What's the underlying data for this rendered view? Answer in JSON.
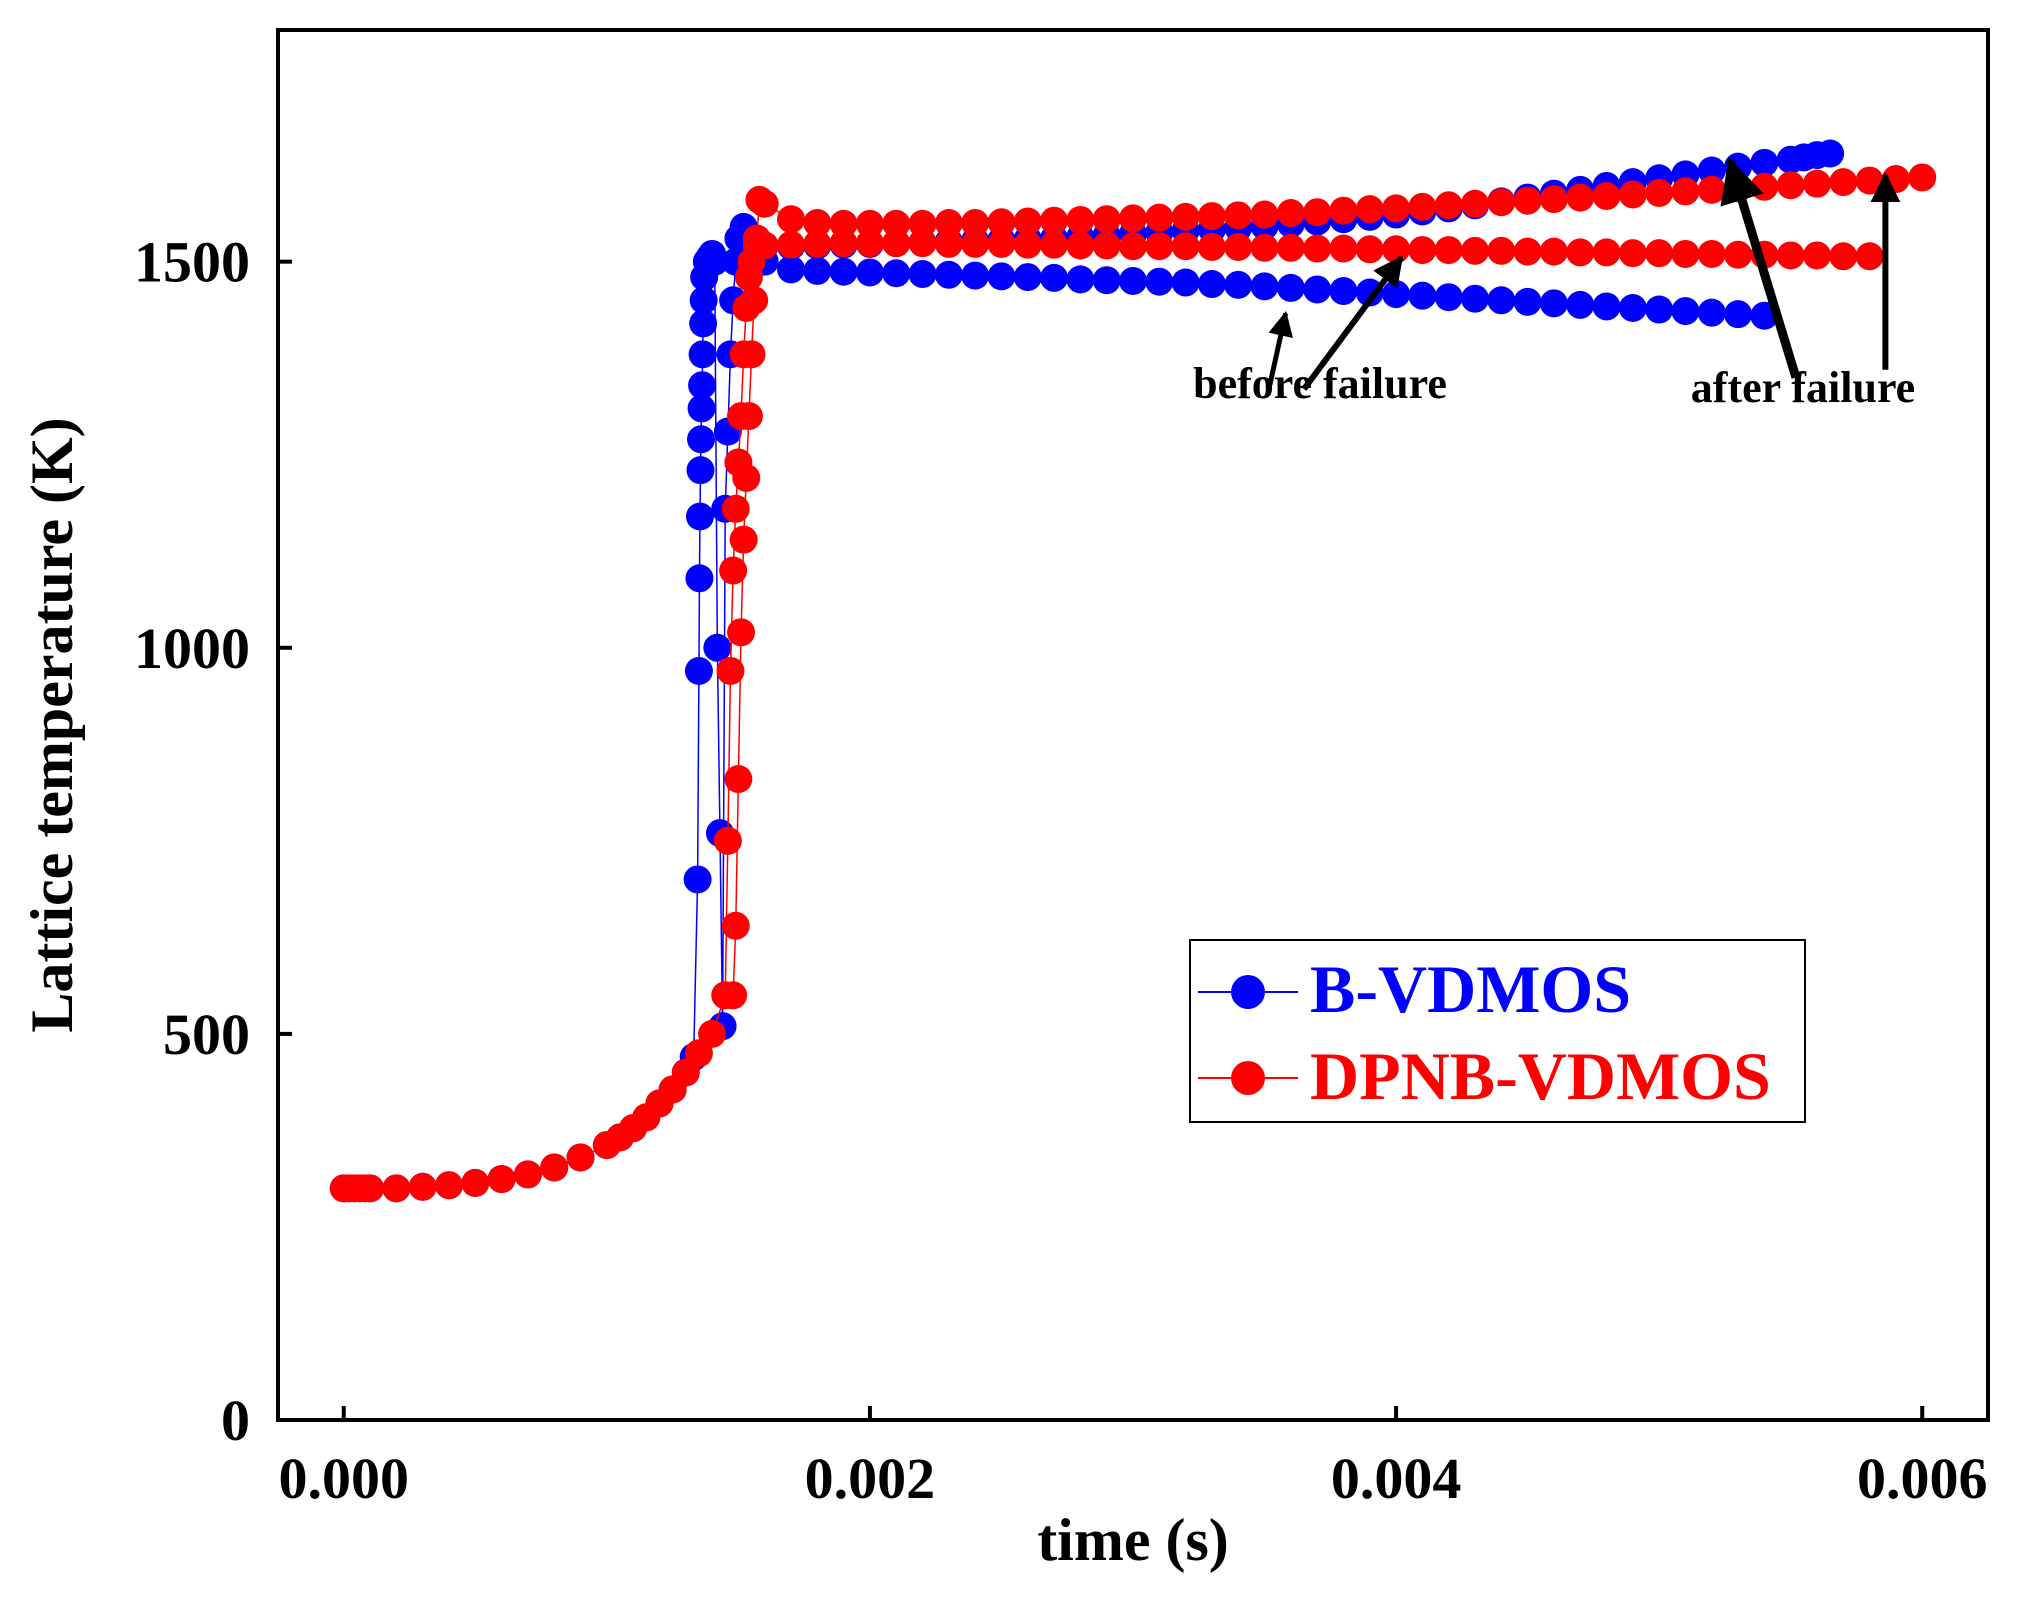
{
  "chart_data": {
    "type": "scatter",
    "title": "",
    "xlabel": "time (s)",
    "ylabel": "Lattice temperature (K)",
    "xlim": [
      -0.00025,
      0.00625
    ],
    "ylim": [
      0,
      1800
    ],
    "xticks": [
      0.0,
      0.002,
      0.004,
      0.006
    ],
    "xtick_labels": [
      "0.000",
      "0.002",
      "0.004",
      "0.006"
    ],
    "yticks": [
      0,
      500,
      1000,
      1500
    ],
    "ytick_labels": [
      "0",
      "500",
      "1000",
      "1500"
    ],
    "grid": false,
    "legend_position": "lower-right",
    "series": [
      {
        "name": "B-VDMOS",
        "color": "#0000ff",
        "segments": [
          [
            [
              0.0,
              300
            ],
            [
              0.0001,
              300
            ],
            [
              0.0002,
              300
            ],
            [
              0.0003,
              302
            ],
            [
              0.0004,
              304
            ],
            [
              0.0005,
              307
            ],
            [
              0.0006,
              312
            ],
            [
              0.0007,
              318
            ],
            [
              0.0008,
              327
            ],
            [
              0.0009,
              340
            ],
            [
              0.001,
              356
            ],
            [
              0.00105,
              366
            ],
            [
              0.0011,
              378
            ],
            [
              0.00115,
              392
            ],
            [
              0.0012,
              410
            ],
            [
              0.00125,
              428
            ],
            [
              0.0013,
              450
            ],
            [
              0.00133,
              470
            ],
            [
              0.001345,
              700
            ],
            [
              0.00135,
              970
            ],
            [
              0.001352,
              1090
            ],
            [
              0.001354,
              1170
            ],
            [
              0.001356,
              1230
            ],
            [
              0.001358,
              1270
            ],
            [
              0.00136,
              1310
            ],
            [
              0.001362,
              1340
            ],
            [
              0.001364,
              1380
            ],
            [
              0.001366,
              1420
            ],
            [
              0.001368,
              1450
            ],
            [
              0.00137,
              1480
            ],
            [
              0.00138,
              1500
            ],
            [
              0.00139,
              1505
            ],
            [
              0.0014,
              1510
            ],
            [
              0.00141,
              1500
            ],
            [
              0.00142,
              1000
            ],
            [
              0.00143,
              760
            ],
            [
              0.00144,
              510
            ],
            [
              0.00145,
              1180
            ],
            [
              0.00146,
              1280
            ],
            [
              0.00147,
              1380
            ],
            [
              0.00148,
              1450
            ],
            [
              0.00149,
              1500
            ],
            [
              0.0015,
              1530
            ],
            [
              0.00152,
              1545
            ],
            [
              0.00155,
              1520
            ],
            [
              0.0016,
              1500
            ],
            [
              0.0017,
              1490
            ],
            [
              0.0018,
              1488
            ],
            [
              0.0019,
              1487
            ],
            [
              0.002,
              1486
            ],
            [
              0.0021,
              1485
            ],
            [
              0.0022,
              1484
            ],
            [
              0.0023,
              1483
            ],
            [
              0.0024,
              1482
            ],
            [
              0.0025,
              1481
            ],
            [
              0.0026,
              1480
            ],
            [
              0.0027,
              1479
            ],
            [
              0.0028,
              1477
            ],
            [
              0.0029,
              1476
            ],
            [
              0.003,
              1475
            ],
            [
              0.0031,
              1474
            ],
            [
              0.0032,
              1473
            ],
            [
              0.0033,
              1471
            ],
            [
              0.0034,
              1470
            ],
            [
              0.0035,
              1468
            ],
            [
              0.0036,
              1466
            ],
            [
              0.0037,
              1464
            ],
            [
              0.0038,
              1462
            ],
            [
              0.0039,
              1460
            ],
            [
              0.004,
              1458
            ],
            [
              0.0041,
              1456
            ],
            [
              0.0042,
              1454
            ],
            [
              0.0043,
              1452
            ],
            [
              0.0044,
              1450
            ],
            [
              0.0045,
              1448
            ],
            [
              0.0046,
              1446
            ],
            [
              0.0047,
              1444
            ],
            [
              0.0048,
              1442
            ],
            [
              0.0049,
              1440
            ],
            [
              0.005,
              1438
            ],
            [
              0.0051,
              1436
            ],
            [
              0.0052,
              1434
            ],
            [
              0.0053,
              1432
            ],
            [
              0.0054,
              1430
            ]
          ],
          [
            [
              0.0016,
              1520
            ],
            [
              0.0017,
              1520
            ],
            [
              0.0018,
              1521
            ],
            [
              0.0019,
              1522
            ],
            [
              0.002,
              1523
            ],
            [
              0.0021,
              1524
            ],
            [
              0.0022,
              1525
            ],
            [
              0.0023,
              1526
            ],
            [
              0.0024,
              1527
            ],
            [
              0.0025,
              1528
            ],
            [
              0.0026,
              1529
            ],
            [
              0.0027,
              1530
            ],
            [
              0.0028,
              1532
            ],
            [
              0.0029,
              1534
            ],
            [
              0.003,
              1536
            ],
            [
              0.0031,
              1538
            ],
            [
              0.0032,
              1540
            ],
            [
              0.0033,
              1542
            ],
            [
              0.0034,
              1544
            ],
            [
              0.0035,
              1546
            ],
            [
              0.0036,
              1549
            ],
            [
              0.0037,
              1552
            ],
            [
              0.0038,
              1555
            ],
            [
              0.0039,
              1558
            ],
            [
              0.004,
              1561
            ],
            [
              0.0041,
              1565
            ],
            [
              0.0042,
              1569
            ],
            [
              0.0043,
              1573
            ],
            [
              0.0044,
              1578
            ],
            [
              0.0045,
              1583
            ],
            [
              0.0046,
              1588
            ],
            [
              0.0047,
              1593
            ],
            [
              0.0048,
              1598
            ],
            [
              0.0049,
              1603
            ],
            [
              0.005,
              1608
            ],
            [
              0.0051,
              1613
            ],
            [
              0.0052,
              1618
            ],
            [
              0.0053,
              1623
            ],
            [
              0.0054,
              1628
            ],
            [
              0.0055,
              1632
            ],
            [
              0.00555,
              1635
            ],
            [
              0.0056,
              1638
            ],
            [
              0.00565,
              1640
            ]
          ]
        ]
      },
      {
        "name": "DPNB-VDMOS",
        "color": "#ff0000",
        "segments": [
          [
            [
              0.0,
              300
            ],
            [
              2e-05,
              300
            ],
            [
              4e-05,
              300
            ],
            [
              6e-05,
              300
            ],
            [
              8e-05,
              300
            ],
            [
              0.0001,
              300
            ],
            [
              0.0002,
              300
            ],
            [
              0.0003,
              302
            ],
            [
              0.0004,
              304
            ],
            [
              0.0005,
              307
            ],
            [
              0.0006,
              312
            ],
            [
              0.0007,
              318
            ],
            [
              0.0008,
              327
            ],
            [
              0.0009,
              340
            ],
            [
              0.001,
              356
            ],
            [
              0.00105,
              366
            ],
            [
              0.0011,
              378
            ],
            [
              0.00115,
              392
            ],
            [
              0.0012,
              410
            ],
            [
              0.00125,
              428
            ],
            [
              0.0013,
              450
            ],
            [
              0.00135,
              475
            ],
            [
              0.0014,
              500
            ],
            [
              0.00145,
              550
            ],
            [
              0.00146,
              750
            ],
            [
              0.00147,
              970
            ],
            [
              0.00148,
              1100
            ],
            [
              0.00149,
              1180
            ],
            [
              0.0015,
              1240
            ],
            [
              0.00151,
              1300
            ],
            [
              0.00152,
              1380
            ],
            [
              0.00153,
              1440
            ],
            [
              0.00154,
              1480
            ],
            [
              0.00155,
              1500
            ],
            [
              0.00157,
              1520
            ],
            [
              0.0016,
              1521
            ],
            [
              0.0017,
              1522
            ],
            [
              0.0018,
              1523
            ],
            [
              0.0019,
              1524
            ],
            [
              0.002,
              1524
            ],
            [
              0.0021,
              1524
            ],
            [
              0.0022,
              1524
            ],
            [
              0.0023,
              1523
            ],
            [
              0.0024,
              1523
            ],
            [
              0.0025,
              1523
            ],
            [
              0.0026,
              1522
            ],
            [
              0.0027,
              1522
            ],
            [
              0.0028,
              1521
            ],
            [
              0.0029,
              1521
            ],
            [
              0.003,
              1520
            ],
            [
              0.0031,
              1520
            ],
            [
              0.0032,
              1520
            ],
            [
              0.0033,
              1519
            ],
            [
              0.0034,
              1519
            ],
            [
              0.0035,
              1518
            ],
            [
              0.0036,
              1518
            ],
            [
              0.0037,
              1517
            ],
            [
              0.0038,
              1517
            ],
            [
              0.0039,
              1516
            ],
            [
              0.004,
              1516
            ],
            [
              0.0041,
              1515
            ],
            [
              0.0042,
              1515
            ],
            [
              0.0043,
              1514
            ],
            [
              0.0044,
              1514
            ],
            [
              0.0045,
              1513
            ],
            [
              0.0046,
              1513
            ],
            [
              0.0047,
              1512
            ],
            [
              0.0048,
              1512
            ],
            [
              0.0049,
              1511
            ],
            [
              0.005,
              1511
            ],
            [
              0.0051,
              1510
            ],
            [
              0.0052,
              1510
            ],
            [
              0.0053,
              1509
            ],
            [
              0.0054,
              1509
            ],
            [
              0.0055,
              1508
            ],
            [
              0.0056,
              1508
            ],
            [
              0.0057,
              1507
            ],
            [
              0.0058,
              1507
            ]
          ],
          [
            [
              0.00148,
              550
            ],
            [
              0.00149,
              640
            ],
            [
              0.0015,
              830
            ],
            [
              0.00151,
              1020
            ],
            [
              0.00152,
              1140
            ],
            [
              0.00153,
              1220
            ],
            [
              0.00154,
              1300
            ],
            [
              0.00155,
              1380
            ],
            [
              0.00156,
              1450
            ],
            [
              0.00157,
              1530
            ],
            [
              0.00158,
              1580
            ],
            [
              0.0016,
              1575
            ],
            [
              0.0017,
              1555
            ],
            [
              0.0018,
              1550
            ],
            [
              0.0019,
              1549
            ],
            [
              0.002,
              1549
            ],
            [
              0.0021,
              1549
            ],
            [
              0.0022,
              1549
            ],
            [
              0.0023,
              1550
            ],
            [
              0.0024,
              1550
            ],
            [
              0.0025,
              1551
            ],
            [
              0.0026,
              1552
            ],
            [
              0.0027,
              1553
            ],
            [
              0.0028,
              1554
            ],
            [
              0.0029,
              1555
            ],
            [
              0.003,
              1556
            ],
            [
              0.0031,
              1557
            ],
            [
              0.0032,
              1558
            ],
            [
              0.0033,
              1559
            ],
            [
              0.0034,
              1560
            ],
            [
              0.0035,
              1561
            ],
            [
              0.0036,
              1563
            ],
            [
              0.0037,
              1564
            ],
            [
              0.0038,
              1566
            ],
            [
              0.0039,
              1568
            ],
            [
              0.004,
              1569
            ],
            [
              0.0041,
              1571
            ],
            [
              0.0042,
              1573
            ],
            [
              0.0043,
              1575
            ],
            [
              0.0044,
              1577
            ],
            [
              0.0045,
              1579
            ],
            [
              0.0046,
              1581
            ],
            [
              0.0047,
              1583
            ],
            [
              0.0048,
              1585
            ],
            [
              0.0049,
              1587
            ],
            [
              0.005,
              1589
            ],
            [
              0.0051,
              1591
            ],
            [
              0.0052,
              1593
            ],
            [
              0.0053,
              1595
            ],
            [
              0.0054,
              1597
            ],
            [
              0.0055,
              1599
            ],
            [
              0.0056,
              1601
            ],
            [
              0.0057,
              1603
            ],
            [
              0.0058,
              1605
            ],
            [
              0.0059,
              1607
            ],
            [
              0.006,
              1609
            ]
          ]
        ]
      }
    ],
    "annotations": [
      {
        "text": "before failure",
        "arrows_to": [
          [
            0.00358,
            1433
          ],
          [
            0.00402,
            1505
          ]
        ]
      },
      {
        "text": "after failure",
        "arrows_to": [
          [
            0.00527,
            1630
          ],
          [
            0.00586,
            1612
          ]
        ]
      }
    ]
  }
}
